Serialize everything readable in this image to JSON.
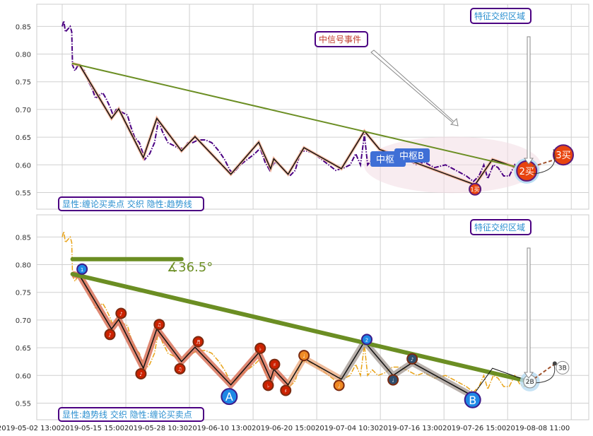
{
  "chart_data": [
    {
      "type": "line",
      "panel": "top",
      "ylim": [
        0.52,
        0.89
      ],
      "y_ticks": [
        0.55,
        0.6,
        0.65,
        0.7,
        0.75,
        0.8,
        0.85
      ],
      "grid": true,
      "price_color": "#4b0082",
      "price_style": "dash-dot",
      "legend_text": "显性:缠论买卖点 交织 隐性:趋势线",
      "annotations": {
        "signal_event": "中信号事件",
        "feature_zone": "特征交织区域",
        "pivot": "中枢",
        "pivot_b": "中枢B"
      },
      "trendline": {
        "from": [
          13,
          0.783
        ],
        "to": [
          584,
          0.592
        ],
        "color": "#6b8e23"
      },
      "zigzag": [
        [
          13,
          0.783
        ],
        [
          22,
          0.78
        ],
        [
          62,
          0.684
        ],
        [
          71,
          0.701
        ],
        [
          102,
          0.613
        ],
        [
          119,
          0.684
        ],
        [
          150,
          0.625
        ],
        [
          167,
          0.651
        ],
        [
          212,
          0.583
        ],
        [
          247,
          0.641
        ],
        [
          262,
          0.593
        ],
        [
          266,
          0.611
        ],
        [
          284,
          0.583
        ],
        [
          304,
          0.631
        ],
        [
          351,
          0.593
        ],
        [
          380,
          0.661
        ],
        [
          399,
          0.628
        ],
        [
          519,
          0.564
        ],
        [
          541,
          0.61
        ],
        [
          584,
          0.589
        ]
      ],
      "signals": [
        {
          "label": "1买",
          "x": 519,
          "y": 0.556,
          "size": "small"
        },
        {
          "label": "2买",
          "x": 584,
          "y": 0.589,
          "size": "large"
        },
        {
          "label": "3买",
          "x": 630,
          "y": 0.618,
          "size": "large"
        }
      ]
    },
    {
      "type": "line",
      "panel": "bottom",
      "ylim": [
        0.52,
        0.89
      ],
      "y_ticks": [
        0.55,
        0.6,
        0.65,
        0.7,
        0.75,
        0.8,
        0.85
      ],
      "grid": true,
      "price_color": "#e8a317",
      "price_style": "dash-dot",
      "legend_text": "显性:趋势线 交织 隐性:缠论买卖点",
      "annotations": {
        "feature_zone": "特征交织区域",
        "angle": "∡36.5°"
      },
      "trendline": {
        "from": [
          13,
          0.783
        ],
        "to": [
          584,
          0.59
        ],
        "color": "#6b8e23"
      },
      "angle_reference": {
        "from": [
          13,
          0.81
        ],
        "to": [
          150,
          0.81
        ]
      },
      "zigzag": [
        [
          13,
          0.783
        ],
        [
          22,
          0.78
        ],
        [
          62,
          0.684
        ],
        [
          71,
          0.701
        ],
        [
          102,
          0.613
        ],
        [
          119,
          0.684
        ],
        [
          150,
          0.625
        ],
        [
          167,
          0.651
        ],
        [
          212,
          0.583
        ],
        [
          247,
          0.641
        ],
        [
          262,
          0.593
        ],
        [
          266,
          0.611
        ],
        [
          284,
          0.583
        ],
        [
          304,
          0.631
        ],
        [
          351,
          0.593
        ],
        [
          380,
          0.661
        ],
        [
          416,
          0.6
        ],
        [
          440,
          0.623
        ],
        [
          516,
          0.563
        ]
      ],
      "markers": [
        {
          "x": 25,
          "y": 0.792,
          "label": "1",
          "color": "#1e88e5"
        },
        {
          "x": 60,
          "y": 0.674,
          "label": "♪",
          "color": "#cc2200"
        },
        {
          "x": 74,
          "y": 0.712,
          "label": "♪",
          "color": "#cc2200"
        },
        {
          "x": 99,
          "y": 0.603,
          "label": "♪",
          "color": "#cc2200"
        },
        {
          "x": 122,
          "y": 0.692,
          "label": "♫",
          "color": "#cc2200"
        },
        {
          "x": 148,
          "y": 0.612,
          "label": "♫",
          "color": "#cc2200"
        },
        {
          "x": 171,
          "y": 0.661,
          "label": "♬",
          "color": "#cc2200"
        },
        {
          "x": 210,
          "y": 0.562,
          "label": "A",
          "color": "#1e88e5",
          "big": true
        },
        {
          "x": 249,
          "y": 0.649,
          "label": "♭",
          "color": "#cc2200"
        },
        {
          "x": 259,
          "y": 0.582,
          "label": "♭",
          "color": "#cc2200"
        },
        {
          "x": 267,
          "y": 0.62,
          "label": "♯",
          "color": "#cc2200"
        },
        {
          "x": 281,
          "y": 0.573,
          "label": "♯",
          "color": "#cc2200"
        },
        {
          "x": 304,
          "y": 0.636,
          "label": "♩",
          "color": "#f08a24"
        },
        {
          "x": 348,
          "y": 0.582,
          "label": "♩",
          "color": "#f08a24"
        },
        {
          "x": 383,
          "y": 0.665,
          "label": "2",
          "color": "#1e88e5"
        },
        {
          "x": 416,
          "y": 0.592,
          "label": "♩",
          "color": "#2f4f6f"
        },
        {
          "x": 440,
          "y": 0.63,
          "label": "♪",
          "color": "#2f4f6f"
        },
        {
          "x": 516,
          "y": 0.556,
          "label": "B",
          "color": "#1e88e5",
          "big": true
        }
      ],
      "signals": [
        {
          "label": "2B",
          "x": 588,
          "y": 0.589
        },
        {
          "label": "3B",
          "x": 629,
          "y": 0.614
        }
      ]
    }
  ],
  "x_ticks": [
    {
      "bar": 0,
      "label": "2019-05-02 13:00"
    },
    {
      "bar": 80,
      "label": "2019-05-15 15:00"
    },
    {
      "bar": 160,
      "label": "2019-05-28 10:30"
    },
    {
      "bar": 240,
      "label": "2019-06-10 13:00"
    },
    {
      "bar": 320,
      "label": "2019-06-20 15:00"
    },
    {
      "bar": 400,
      "label": "2019-07-04 10:30"
    },
    {
      "bar": 480,
      "label": "2019-07-16 13:00"
    },
    {
      "bar": 560,
      "label": "2019-07-26 15:00"
    },
    {
      "bar": 640,
      "label": "2019-08-08 11:00"
    }
  ],
  "xlim": [
    -32,
    662
  ],
  "price_series": [
    [
      0,
      0.85
    ],
    [
      2,
      0.86
    ],
    [
      4,
      0.84
    ],
    [
      7,
      0.845
    ],
    [
      10,
      0.85
    ],
    [
      12,
      0.84
    ],
    [
      13,
      0.78
    ],
    [
      16,
      0.77
    ],
    [
      20,
      0.78
    ],
    [
      24,
      0.775
    ],
    [
      28,
      0.77
    ],
    [
      33,
      0.75
    ],
    [
      37,
      0.74
    ],
    [
      42,
      0.72
    ],
    [
      46,
      0.725
    ],
    [
      51,
      0.73
    ],
    [
      55,
      0.72
    ],
    [
      60,
      0.705
    ],
    [
      64,
      0.69
    ],
    [
      68,
      0.7
    ],
    [
      75,
      0.695
    ],
    [
      82,
      0.69
    ],
    [
      86,
      0.67
    ],
    [
      91,
      0.65
    ],
    [
      97,
      0.64
    ],
    [
      104,
      0.61
    ],
    [
      110,
      0.62
    ],
    [
      116,
      0.64
    ],
    [
      121,
      0.68
    ],
    [
      126,
      0.66
    ],
    [
      133,
      0.64
    ],
    [
      140,
      0.635
    ],
    [
      146,
      0.63
    ],
    [
      153,
      0.63
    ],
    [
      158,
      0.64
    ],
    [
      164,
      0.64
    ],
    [
      171,
      0.645
    ],
    [
      180,
      0.645
    ],
    [
      188,
      0.64
    ],
    [
      197,
      0.625
    ],
    [
      204,
      0.61
    ],
    [
      211,
      0.59
    ],
    [
      215,
      0.585
    ],
    [
      224,
      0.6
    ],
    [
      233,
      0.61
    ],
    [
      242,
      0.62
    ],
    [
      249,
      0.63
    ],
    [
      255,
      0.605
    ],
    [
      261,
      0.59
    ],
    [
      267,
      0.605
    ],
    [
      273,
      0.6
    ],
    [
      279,
      0.59
    ],
    [
      286,
      0.58
    ],
    [
      293,
      0.59
    ],
    [
      300,
      0.625
    ],
    [
      308,
      0.625
    ],
    [
      317,
      0.62
    ],
    [
      326,
      0.61
    ],
    [
      335,
      0.6
    ],
    [
      344,
      0.59
    ],
    [
      355,
      0.595
    ],
    [
      362,
      0.6
    ],
    [
      369,
      0.62
    ],
    [
      375,
      0.6
    ],
    [
      380,
      0.655
    ],
    [
      384,
      0.6
    ],
    [
      390,
      0.61
    ],
    [
      397,
      0.6
    ],
    [
      406,
      0.605
    ],
    [
      415,
      0.615
    ],
    [
      424,
      0.615
    ],
    [
      433,
      0.61
    ],
    [
      446,
      0.6
    ],
    [
      455,
      0.605
    ],
    [
      468,
      0.595
    ],
    [
      482,
      0.6
    ],
    [
      495,
      0.59
    ],
    [
      508,
      0.58
    ],
    [
      517,
      0.57
    ],
    [
      524,
      0.58
    ],
    [
      530,
      0.6
    ],
    [
      535,
      0.575
    ],
    [
      542,
      0.6
    ],
    [
      548,
      0.595
    ],
    [
      555,
      0.58
    ],
    [
      562,
      0.58
    ],
    [
      569,
      0.6
    ],
    [
      575,
      0.585
    ],
    [
      581,
      0.58
    ],
    [
      587,
      0.59
    ]
  ]
}
